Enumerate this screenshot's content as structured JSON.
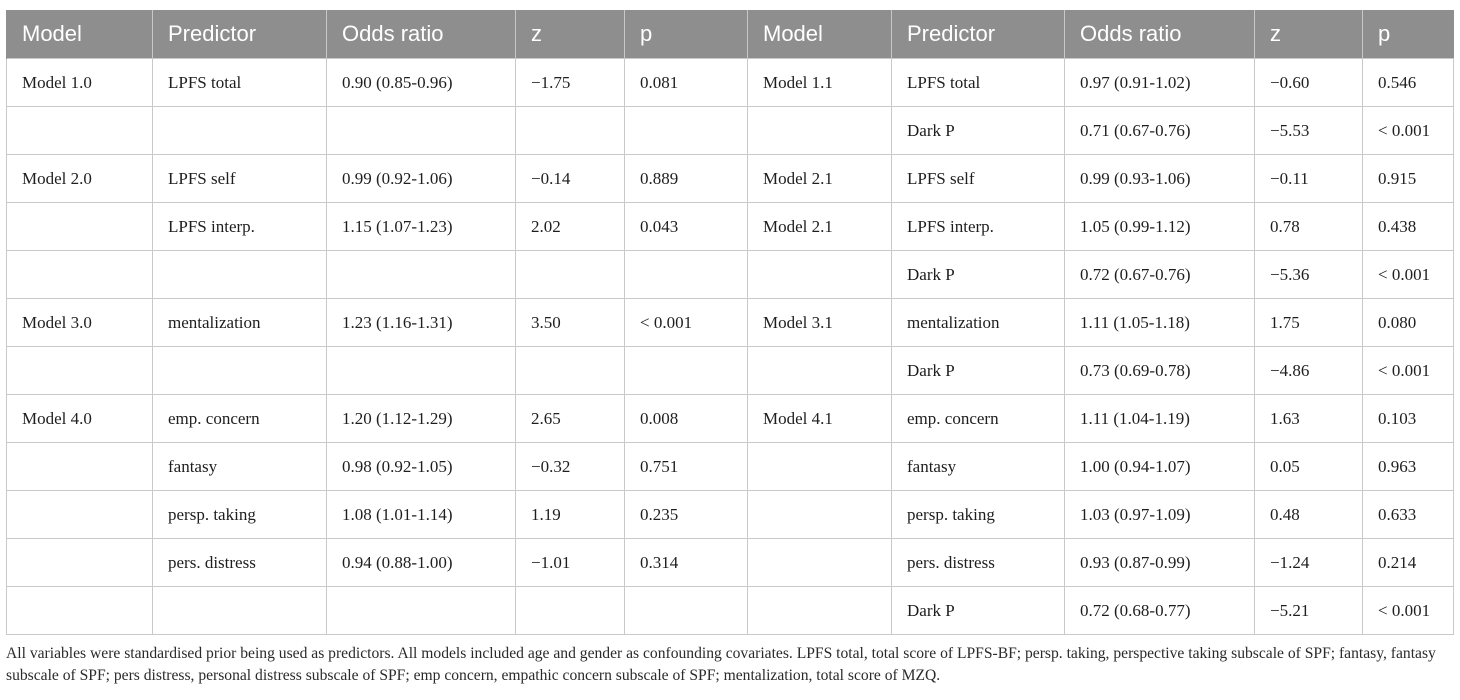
{
  "table": {
    "headers": [
      "Model",
      "Predictor",
      "Odds ratio",
      "z",
      "p",
      "Model",
      "Predictor",
      "Odds ratio",
      "z",
      "p"
    ],
    "rows": [
      [
        "Model 1.0",
        "LPFS total",
        "0.90 (0.85-0.96)",
        "−1.75",
        "0.081",
        "Model 1.1",
        "LPFS total",
        "0.97 (0.91-1.02)",
        "−0.60",
        "0.546"
      ],
      [
        "",
        "",
        "",
        "",
        "",
        "",
        "Dark P",
        "0.71 (0.67-0.76)",
        "−5.53",
        "< 0.001"
      ],
      [
        "Model 2.0",
        "LPFS self",
        "0.99 (0.92-1.06)",
        "−0.14",
        "0.889",
        "Model 2.1",
        "LPFS self",
        "0.99 (0.93-1.06)",
        "−0.11",
        "0.915"
      ],
      [
        "",
        "LPFS interp.",
        "1.15 (1.07-1.23)",
        "2.02",
        "0.043",
        "Model 2.1",
        "LPFS interp.",
        "1.05 (0.99-1.12)",
        "0.78",
        "0.438"
      ],
      [
        "",
        "",
        "",
        "",
        "",
        "",
        "Dark P",
        "0.72 (0.67-0.76)",
        "−5.36",
        "< 0.001"
      ],
      [
        "Model 3.0",
        "mentalization",
        "1.23 (1.16-1.31)",
        "3.50",
        "< 0.001",
        "Model 3.1",
        "mentalization",
        "1.11 (1.05-1.18)",
        "1.75",
        "0.080"
      ],
      [
        "",
        "",
        "",
        "",
        "",
        "",
        "Dark P",
        "0.73 (0.69-0.78)",
        "−4.86",
        "< 0.001"
      ],
      [
        "Model 4.0",
        "emp. concern",
        "1.20 (1.12-1.29)",
        "2.65",
        "0.008",
        "Model 4.1",
        "emp. concern",
        "1.11 (1.04-1.19)",
        "1.63",
        "0.103"
      ],
      [
        "",
        "fantasy",
        "0.98 (0.92-1.05)",
        "−0.32",
        "0.751",
        "",
        "fantasy",
        "1.00 (0.94-1.07)",
        "0.05",
        "0.963"
      ],
      [
        "",
        "persp. taking",
        "1.08 (1.01-1.14)",
        "1.19",
        "0.235",
        "",
        "persp. taking",
        "1.03 (0.97-1.09)",
        "0.48",
        "0.633"
      ],
      [
        "",
        "pers. distress",
        "0.94 (0.88-1.00)",
        "−1.01",
        "0.314",
        "",
        "pers. distress",
        "0.93 (0.87-0.99)",
        "−1.24",
        "0.214"
      ],
      [
        "",
        "",
        "",
        "",
        "",
        "",
        "Dark P",
        "0.72 (0.68-0.77)",
        "−5.21",
        "< 0.001"
      ]
    ]
  },
  "footnote": "All variables were standardised prior being used as predictors. All models included age and gender as confounding covariates. LPFS total, total score of LPFS-BF; persp. taking, perspective taking subscale of SPF; fantasy, fantasy subscale of SPF; pers distress, personal distress subscale of SPF; emp concern, empathic concern subscale of SPF; mentalization, total score of MZQ."
}
